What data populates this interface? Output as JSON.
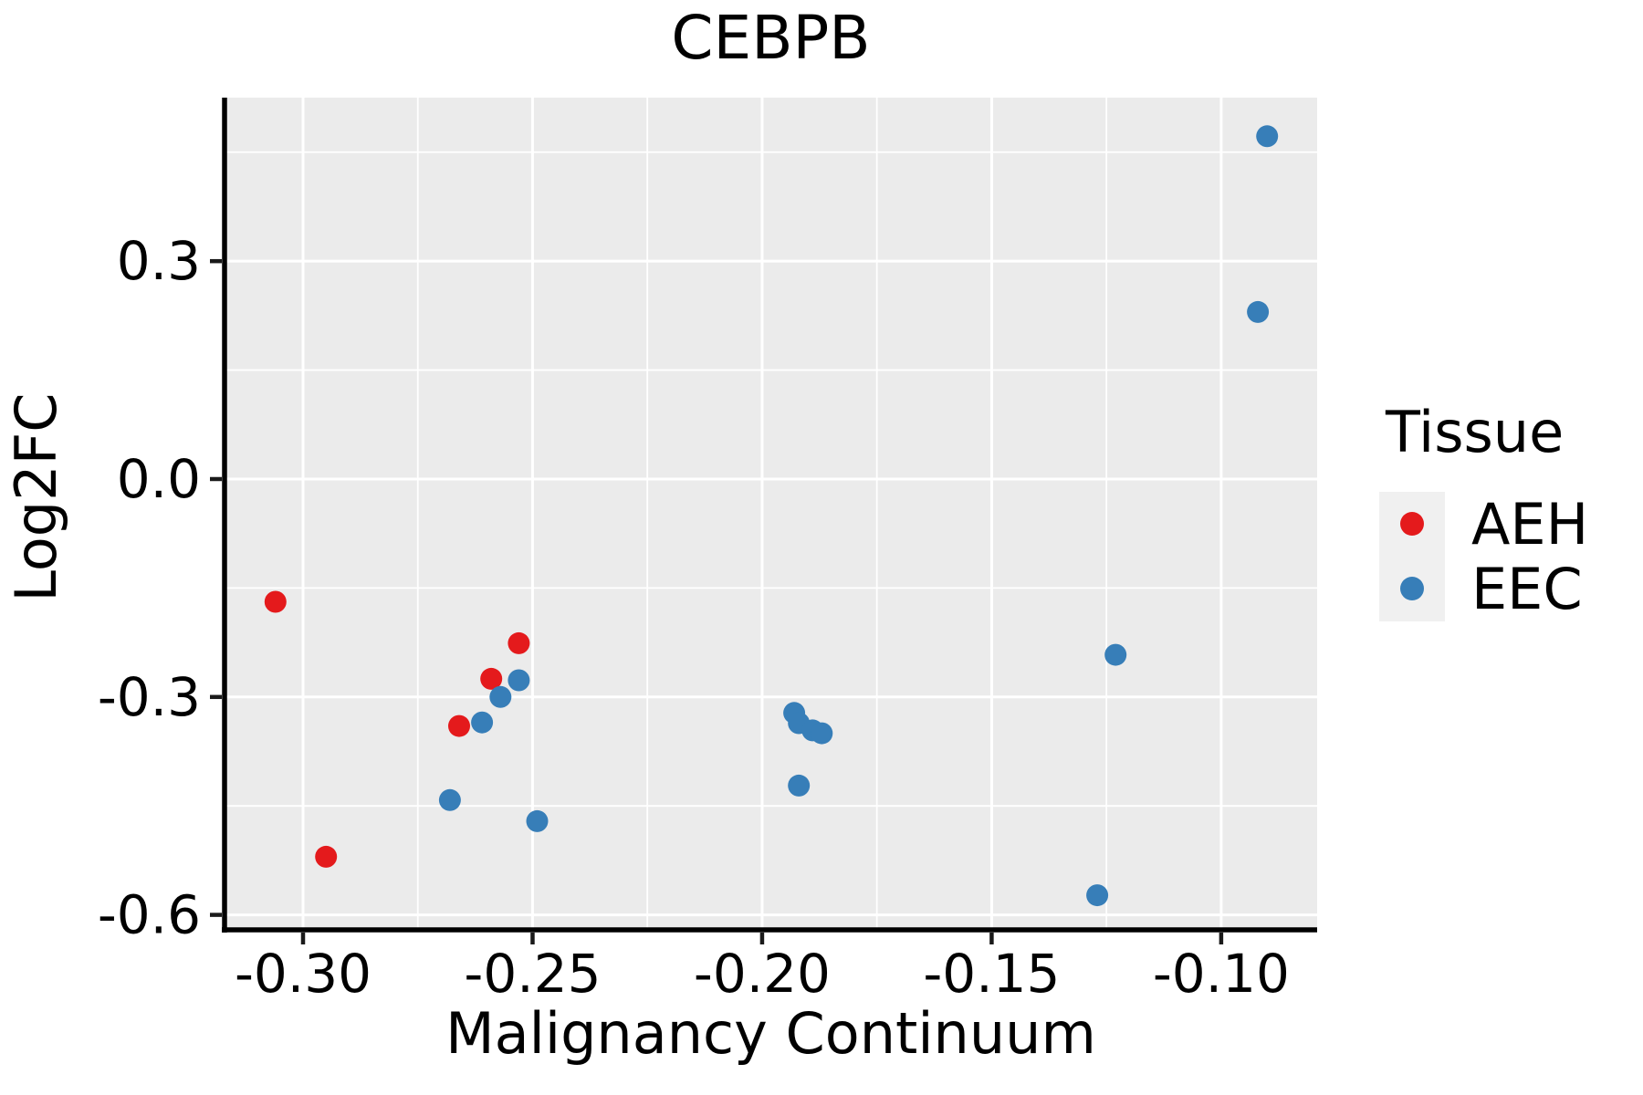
{
  "figure": {
    "title": "CEBPB"
  },
  "axes": {
    "x": {
      "title": "Malignancy Continuum",
      "tick_labels": [
        "-0.30",
        "-0.25",
        "-0.20",
        "-0.15",
        "-0.10"
      ],
      "tick_values": [
        -0.3,
        -0.25,
        -0.2,
        -0.15,
        -0.1
      ],
      "minor_tick_values": [
        -0.275,
        -0.225,
        -0.175,
        -0.125
      ],
      "domain": [
        -0.3171,
        -0.0791
      ]
    },
    "y": {
      "title": "Log2FC",
      "tick_labels": [
        "0.3",
        "0.0",
        "-0.3",
        "-0.6"
      ],
      "tick_values": [
        0.3,
        0.0,
        -0.3,
        -0.6
      ],
      "minor_tick_values": [
        0.45,
        0.15,
        -0.15,
        -0.45
      ],
      "domain": [
        -0.6206,
        0.5251
      ]
    }
  },
  "legend": {
    "title": "Tissue",
    "entries": [
      {
        "label": "AEH",
        "color": "#E41A1C"
      },
      {
        "label": "EEC",
        "color": "#377EB8"
      }
    ]
  },
  "chart_data": {
    "type": "scatter",
    "title": "CEBPB",
    "xlabel": "Malignancy Continuum",
    "ylabel": "Log2FC",
    "xlim": [
      -0.317,
      -0.079
    ],
    "ylim": [
      -0.621,
      0.525
    ],
    "grid": "white major + minor gridlines on gray panel",
    "legend_position": "right",
    "series": [
      {
        "name": "AEH",
        "color": "#E41A1C",
        "points": [
          [
            -0.306,
            -0.169
          ],
          [
            -0.295,
            -0.52
          ],
          [
            -0.266,
            -0.34
          ],
          [
            -0.259,
            -0.275
          ],
          [
            -0.253,
            -0.226
          ]
        ]
      },
      {
        "name": "EEC",
        "color": "#377EB8",
        "points": [
          [
            -0.268,
            -0.442
          ],
          [
            -0.261,
            -0.335
          ],
          [
            -0.257,
            -0.3
          ],
          [
            -0.253,
            -0.277
          ],
          [
            -0.249,
            -0.471
          ],
          [
            -0.193,
            -0.322
          ],
          [
            -0.192,
            -0.336
          ],
          [
            -0.189,
            -0.346
          ],
          [
            -0.187,
            -0.35
          ],
          [
            -0.192,
            -0.422
          ],
          [
            -0.127,
            -0.573
          ],
          [
            -0.123,
            -0.242
          ],
          [
            -0.092,
            0.23
          ],
          [
            -0.09,
            0.472
          ]
        ]
      }
    ]
  },
  "style": {
    "panel_bg": "#EBEBEB",
    "grid_color": "#FFFFFF",
    "axis_line_color": "#000000",
    "tick_color": "#1a1a1a",
    "text_color": "#000000",
    "legend_key_bg": "#F0F0F0",
    "point_radius": 12
  }
}
